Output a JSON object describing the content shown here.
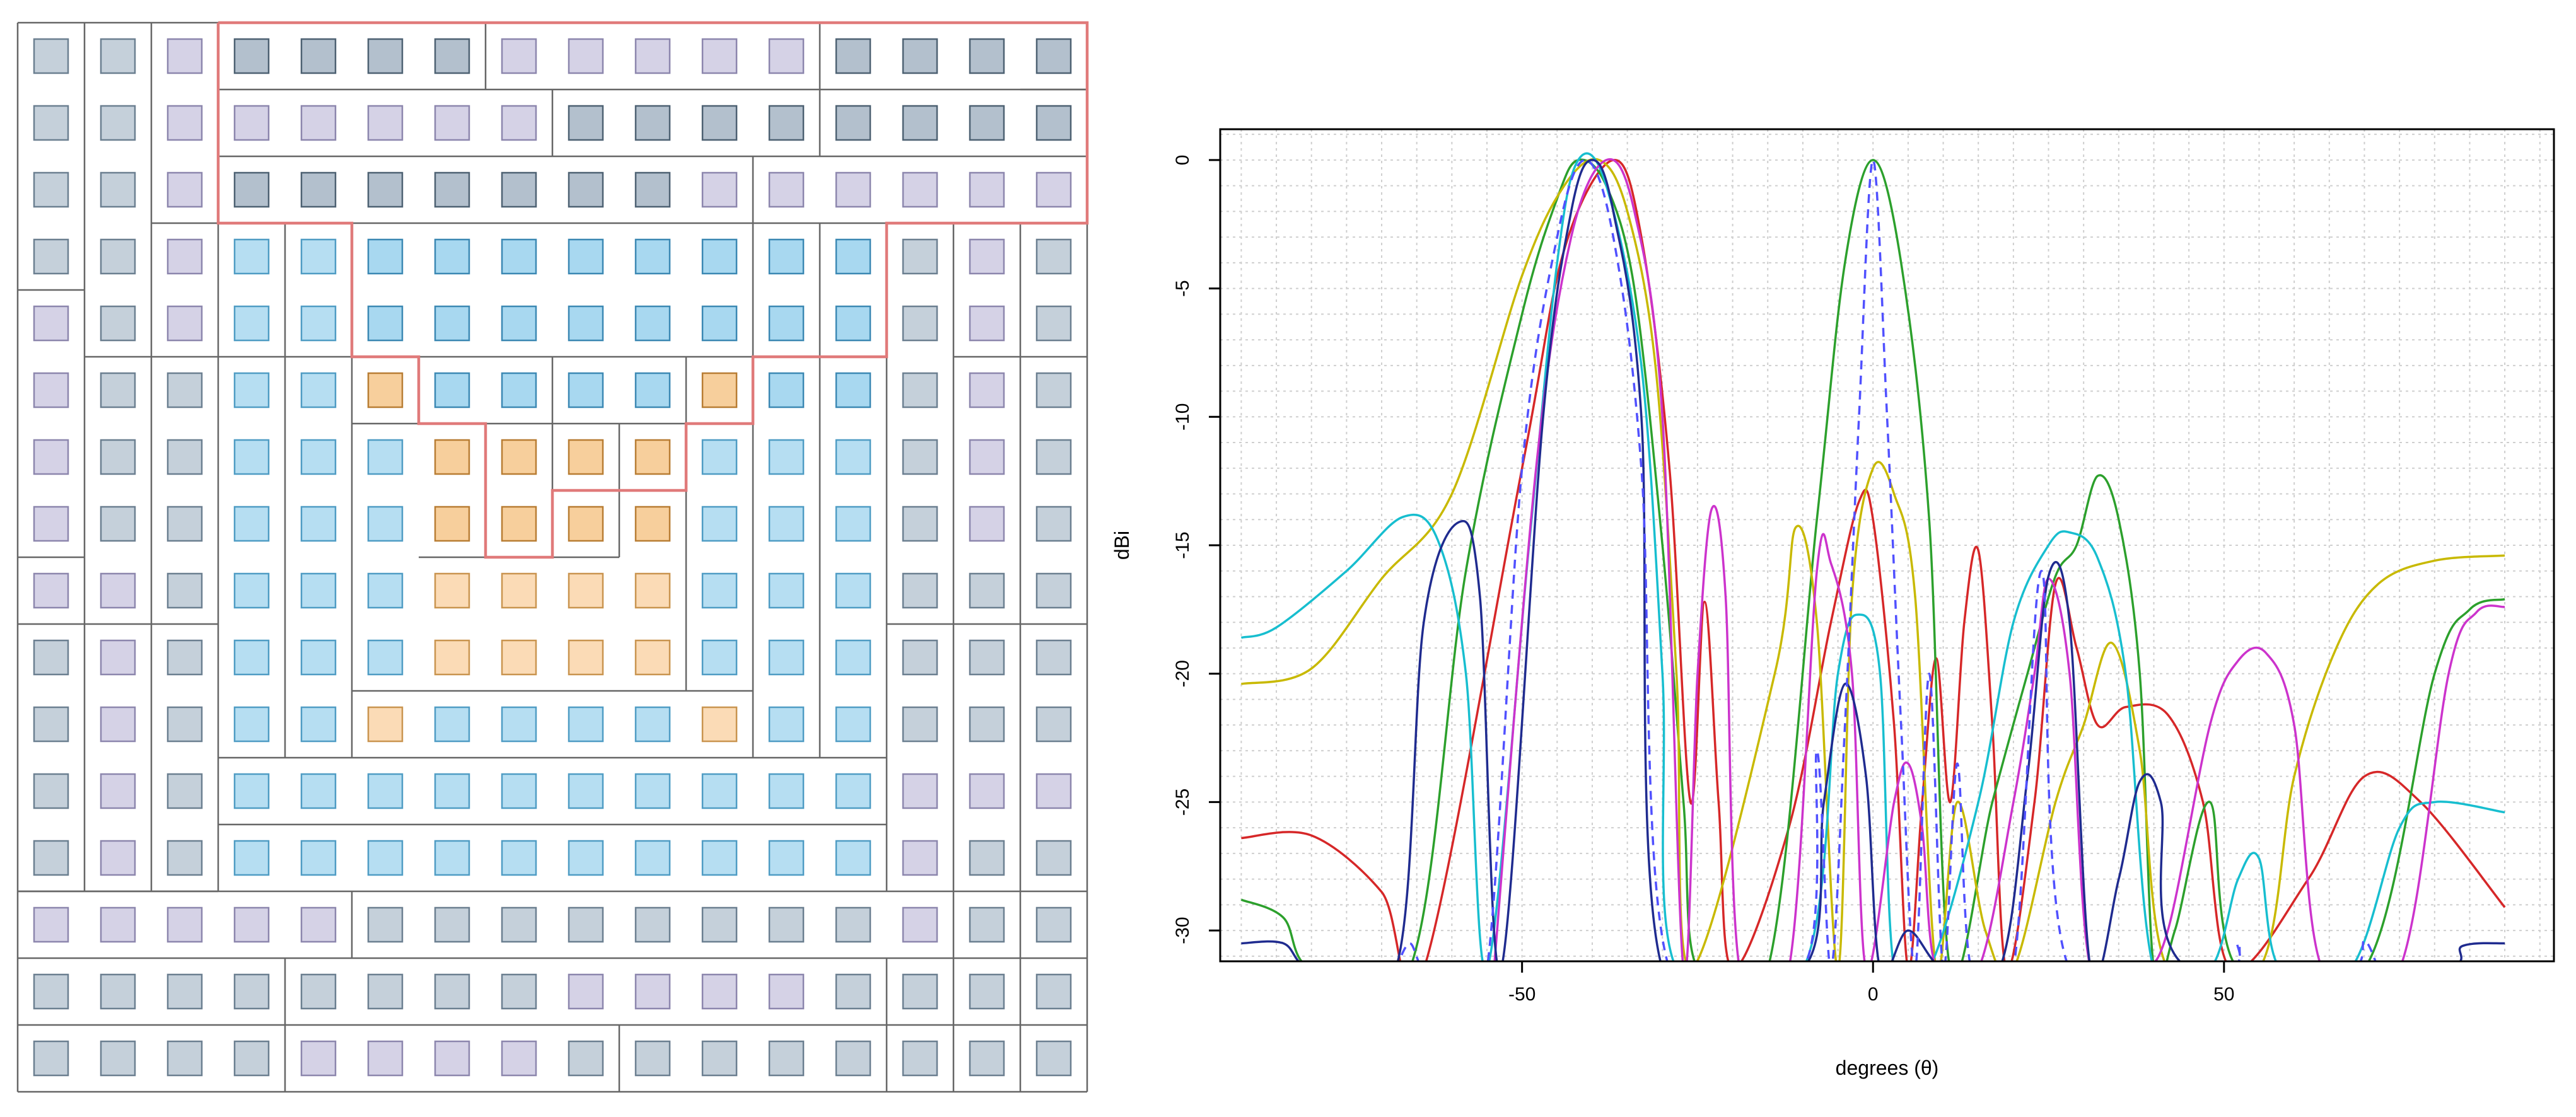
{
  "array_panel": {
    "rows": [
      "GGPGGGGPPPPPGGGG",
      "GGPPPPPPGGGGGGGG",
      "GGPGGGGGGGPPPPPP",
      "GGPBBBBBBBBBBGPG",
      "PGPBBBBBBBBBBGPG",
      "PGGBBOBBBBOBBGPG",
      "PGGBBBOOOOBBBGPG",
      "PGGBBBOOOOBBBGPG",
      "PPGBBBOOOOBBBGGG",
      "GPGBBBOOOOBBBGGG",
      "GPGBBOBBBBOBBGGG",
      "GPGBBBBBBBBBBPPP",
      "GPGBBBBBBBBBBPGG",
      "PPPPPGGGGGGGGPGG",
      "GGGGGGGGPPPPGGGG",
      "GGGGPPPPGGGGGGGG"
    ],
    "colors": {
      "G": {
        "fill": "#c5d0da",
        "stroke": "#6b7f90"
      },
      "P": {
        "fill": "#d5d2e6",
        "stroke": "#8c86ad"
      },
      "B": {
        "fill": "#b6def2",
        "stroke": "#4f9cc4"
      },
      "O": {
        "fill": "#fbdbb6",
        "stroke": "#c9944f"
      },
      "G_dark": {
        "fill": "#b3c0cd",
        "stroke": "#4d6172"
      },
      "B_dark": {
        "fill": "#a8d8f0",
        "stroke": "#3b88b3"
      },
      "O_dark": {
        "fill": "#f7cf9c",
        "stroke": "#b87d33"
      }
    },
    "highlight_color": "#e07a7a",
    "grid_line_color": "#666666"
  },
  "chart_data": {
    "type": "line",
    "xlabel": "degrees (θ)",
    "ylabel": "dBi",
    "xlim": [
      -93,
      97
    ],
    "ylim": [
      -31.2,
      1.2
    ],
    "x_ticks": [
      -50,
      0,
      50
    ],
    "x_tick_labels": [
      "-50",
      "0",
      "50"
    ],
    "y_ticks": [
      0,
      -5,
      -10,
      -15,
      -20,
      -25,
      -30
    ],
    "y_tick_labels": [
      "0",
      "-5",
      "-10",
      "-15",
      "-20",
      "-25",
      "-30"
    ],
    "grid": true,
    "grid_step_x": 5,
    "grid_step_y": 1,
    "series": [
      {
        "color": "#d62728",
        "style": "solid",
        "points": [
          [
            -90,
            -26.4
          ],
          [
            -80,
            -26.3
          ],
          [
            -70,
            -28.5
          ],
          [
            -64,
            -31.5
          ],
          [
            -50,
            -12
          ],
          [
            -44,
            -3.5
          ],
          [
            -37,
            0
          ],
          [
            -33,
            -3
          ],
          [
            -29,
            -12
          ],
          [
            -26,
            -25
          ],
          [
            -24,
            -17.2
          ],
          [
            -22,
            -25
          ],
          [
            -20,
            -31.5
          ],
          [
            -12,
            -26
          ],
          [
            -6,
            -18
          ],
          [
            -2,
            -13.3
          ],
          [
            0,
            -14
          ],
          [
            3,
            -22
          ],
          [
            5,
            -31.5
          ],
          [
            7,
            -25
          ],
          [
            9,
            -19.4
          ],
          [
            11,
            -25
          ],
          [
            13,
            -18
          ],
          [
            15,
            -15.2
          ],
          [
            17,
            -22
          ],
          [
            19,
            -31.5
          ],
          [
            23,
            -25
          ],
          [
            26,
            -16.5
          ],
          [
            29,
            -19
          ],
          [
            32,
            -22
          ],
          [
            36,
            -21.3
          ],
          [
            42,
            -21.6
          ],
          [
            47,
            -25
          ],
          [
            51,
            -31.5
          ],
          [
            62,
            -28
          ],
          [
            70,
            -24
          ],
          [
            78,
            -25
          ],
          [
            90,
            -29.1
          ]
        ]
      },
      {
        "color": "#2ca02c",
        "style": "solid",
        "points": [
          [
            -90,
            -28.8
          ],
          [
            -84,
            -29.5
          ],
          [
            -80,
            -31.5
          ],
          [
            -66,
            -31.5
          ],
          [
            -58,
            -16
          ],
          [
            -50,
            -6
          ],
          [
            -45,
            -1.5
          ],
          [
            -42,
            0
          ],
          [
            -38,
            -1
          ],
          [
            -34,
            -5
          ],
          [
            -30,
            -15
          ],
          [
            -27,
            -25
          ],
          [
            -25,
            -31.5
          ],
          [
            -15,
            -31.5
          ],
          [
            -8,
            -14
          ],
          [
            -4,
            -4
          ],
          [
            0,
            0
          ],
          [
            4,
            -4
          ],
          [
            8,
            -14
          ],
          [
            11,
            -31.5
          ],
          [
            17,
            -25
          ],
          [
            22,
            -20
          ],
          [
            26,
            -16.2
          ],
          [
            29,
            -15
          ],
          [
            32,
            -12.3
          ],
          [
            35,
            -14
          ],
          [
            38,
            -20
          ],
          [
            40,
            -31.5
          ],
          [
            43,
            -30
          ],
          [
            48,
            -25
          ],
          [
            52,
            -31.5
          ],
          [
            70,
            -31.5
          ],
          [
            80,
            -20
          ],
          [
            85,
            -17.5
          ],
          [
            90,
            -17.1
          ]
        ]
      },
      {
        "color": "#c8b900",
        "style": "solid",
        "points": [
          [
            -90,
            -20.4
          ],
          [
            -80,
            -19.8
          ],
          [
            -70,
            -16.3
          ],
          [
            -60,
            -13
          ],
          [
            -50,
            -4.5
          ],
          [
            -44,
            -1
          ],
          [
            -39,
            0
          ],
          [
            -35,
            -2
          ],
          [
            -31,
            -8
          ],
          [
            -28,
            -20
          ],
          [
            -26,
            -31.5
          ],
          [
            -14,
            -20
          ],
          [
            -11,
            -14.3
          ],
          [
            -8,
            -18
          ],
          [
            -5,
            -31.5
          ],
          [
            -3,
            -17
          ],
          [
            0,
            -12
          ],
          [
            3,
            -13
          ],
          [
            6,
            -17
          ],
          [
            9,
            -31.5
          ],
          [
            12,
            -25
          ],
          [
            16,
            -30
          ],
          [
            20,
            -31.5
          ],
          [
            26,
            -25
          ],
          [
            30,
            -22
          ],
          [
            34,
            -18.8
          ],
          [
            38,
            -23
          ],
          [
            42,
            -31.5
          ],
          [
            55,
            -31.5
          ],
          [
            60,
            -24
          ],
          [
            66,
            -19
          ],
          [
            72,
            -16.5
          ],
          [
            80,
            -15.6
          ],
          [
            90,
            -15.4
          ]
        ]
      },
      {
        "color": "#17becf",
        "style": "solid",
        "points": [
          [
            -90,
            -18.6
          ],
          [
            -85,
            -18.2
          ],
          [
            -75,
            -16
          ],
          [
            -67,
            -13.9
          ],
          [
            -62,
            -14.8
          ],
          [
            -58,
            -20
          ],
          [
            -55,
            -31.5
          ],
          [
            -49,
            -15
          ],
          [
            -45,
            -4
          ],
          [
            -42,
            0
          ],
          [
            -38,
            -1
          ],
          [
            -33,
            -8
          ],
          [
            -30,
            -20
          ],
          [
            -28,
            -31.5
          ],
          [
            -10,
            -31.5
          ],
          [
            -5,
            -20
          ],
          [
            -2,
            -17.7
          ],
          [
            1,
            -20
          ],
          [
            3,
            -31.5
          ],
          [
            8,
            -31.5
          ],
          [
            15,
            -25
          ],
          [
            20,
            -18
          ],
          [
            25,
            -15
          ],
          [
            28,
            -14.5
          ],
          [
            32,
            -15.5
          ],
          [
            36,
            -20
          ],
          [
            40,
            -31.5
          ],
          [
            48,
            -31.5
          ],
          [
            52,
            -28
          ],
          [
            55,
            -27.2
          ],
          [
            58,
            -31.5
          ],
          [
            68,
            -31.5
          ],
          [
            75,
            -26
          ],
          [
            80,
            -25
          ],
          [
            90,
            -25.4
          ]
        ]
      },
      {
        "color": "#cc33cc",
        "style": "solid",
        "points": [
          [
            -54,
            -31.5
          ],
          [
            -48,
            -12
          ],
          [
            -43,
            -3
          ],
          [
            -38,
            0
          ],
          [
            -34,
            -2
          ],
          [
            -30,
            -10
          ],
          [
            -27,
            -31.5
          ],
          [
            -25,
            -20
          ],
          [
            -23,
            -13.6
          ],
          [
            -21,
            -17
          ],
          [
            -19,
            -31.5
          ],
          [
            -12,
            -31.5
          ],
          [
            -8,
            -16
          ],
          [
            -6,
            -15.7
          ],
          [
            -3,
            -20
          ],
          [
            -1,
            -31.5
          ],
          [
            3,
            -25
          ],
          [
            5,
            -23.5
          ],
          [
            7,
            -26
          ],
          [
            9,
            -31.5
          ],
          [
            15,
            -31.5
          ],
          [
            20,
            -25
          ],
          [
            23,
            -20
          ],
          [
            25,
            -16.3
          ],
          [
            28,
            -20
          ],
          [
            31,
            -31.5
          ],
          [
            38,
            -31.5
          ],
          [
            42,
            -30
          ],
          [
            48,
            -22
          ],
          [
            52,
            -19.5
          ],
          [
            56,
            -19.2
          ],
          [
            60,
            -22
          ],
          [
            64,
            -31.5
          ],
          [
            75,
            -31.5
          ],
          [
            82,
            -20
          ],
          [
            86,
            -17.6
          ],
          [
            90,
            -17.4
          ]
        ]
      },
      {
        "color": "#1f2b8f",
        "style": "solid",
        "points": [
          [
            -90,
            -30.5
          ],
          [
            -84,
            -30.5
          ],
          [
            -80,
            -31.5
          ],
          [
            -68,
            -31.5
          ],
          [
            -64,
            -18
          ],
          [
            -59,
            -14.1
          ],
          [
            -56,
            -17
          ],
          [
            -53,
            -31.5
          ],
          [
            -47,
            -10
          ],
          [
            -43,
            -2
          ],
          [
            -40,
            0
          ],
          [
            -37,
            -2
          ],
          [
            -33,
            -10
          ],
          [
            -30,
            -31.5
          ],
          [
            -10,
            -31.5
          ],
          [
            -7,
            -25
          ],
          [
            -4,
            -20.4
          ],
          [
            -1,
            -24
          ],
          [
            1,
            -31.5
          ],
          [
            5,
            -30
          ],
          [
            10,
            -31.5
          ],
          [
            18,
            -31.5
          ],
          [
            22,
            -24
          ],
          [
            25,
            -16.2
          ],
          [
            28,
            -18
          ],
          [
            31,
            -31.5
          ],
          [
            35,
            -28
          ],
          [
            38,
            -24.2
          ],
          [
            41,
            -25
          ],
          [
            45,
            -31.5
          ],
          [
            80,
            -31.5
          ],
          [
            84,
            -30.6
          ],
          [
            90,
            -30.5
          ]
        ]
      },
      {
        "color": "#5050ff",
        "style": "dashed",
        "points": [
          [
            -68,
            -31.5
          ],
          [
            -66,
            -30.5
          ],
          [
            -64,
            -31.5
          ],
          [
            -60,
            -31.5
          ],
          [
            -55,
            -31.5
          ],
          [
            -50,
            -12
          ],
          [
            -45,
            -3
          ],
          [
            -41,
            0
          ],
          [
            -37,
            -3
          ],
          [
            -33,
            -12
          ],
          [
            -29,
            -31.5
          ],
          [
            -10,
            -31.5
          ],
          [
            -8,
            -23
          ],
          [
            -6,
            -31.5
          ],
          [
            -4,
            -22
          ],
          [
            -2,
            -10
          ],
          [
            0,
            0
          ],
          [
            2,
            -10
          ],
          [
            4,
            -22
          ],
          [
            6,
            -31.5
          ],
          [
            8,
            -20
          ],
          [
            10,
            -31.5
          ],
          [
            12,
            -23.5
          ],
          [
            14,
            -31.5
          ],
          [
            20,
            -31.5
          ],
          [
            24,
            -16
          ],
          [
            28,
            -31.5
          ],
          [
            50,
            -31.5
          ],
          [
            52,
            -30.5
          ],
          [
            54,
            -31.5
          ],
          [
            68,
            -31.5
          ],
          [
            70,
            -30.4
          ],
          [
            72,
            -31.5
          ]
        ]
      }
    ]
  }
}
